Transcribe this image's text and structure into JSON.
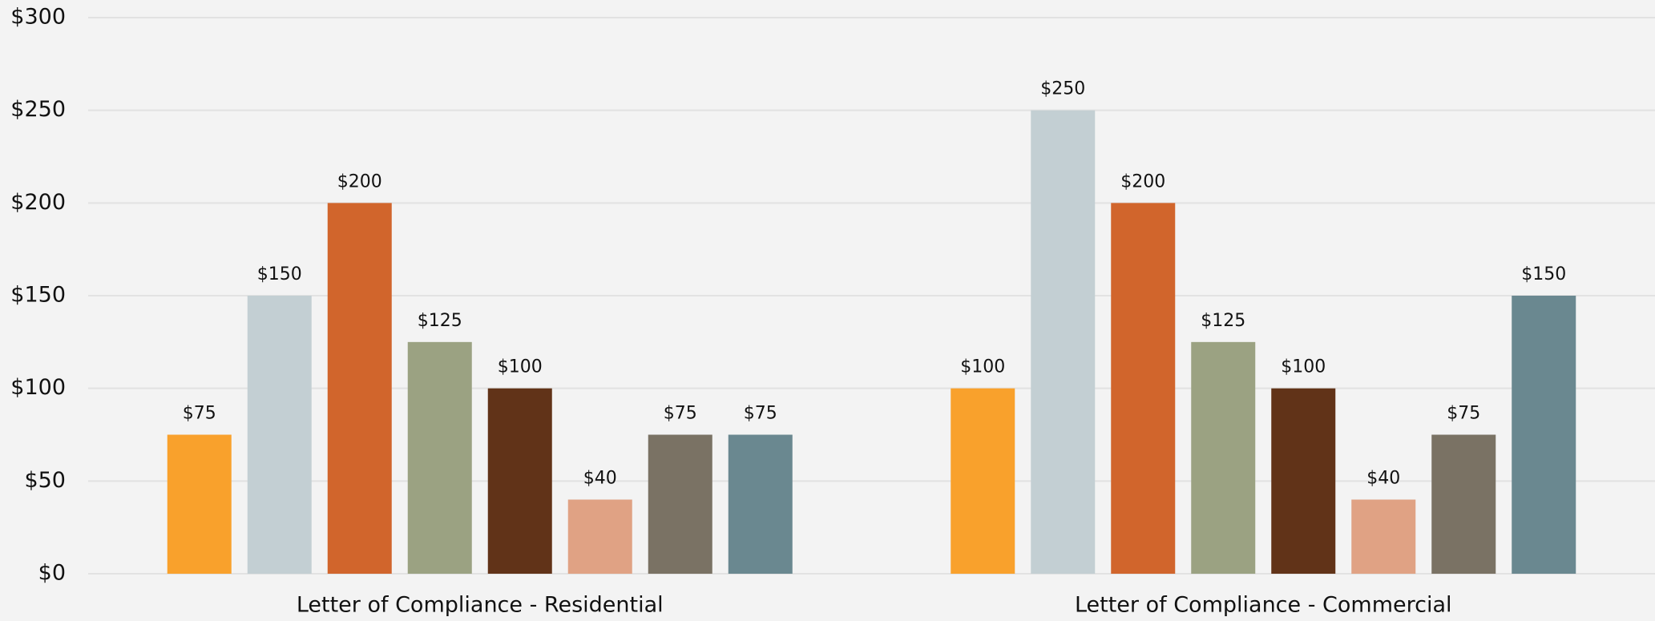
{
  "chart_data": {
    "type": "bar",
    "categories": [
      "Letter of Compliance - Residential",
      "Letter of Compliance - Commercial"
    ],
    "series": [
      {
        "color": "#f9a12c",
        "values": [
          75,
          100
        ],
        "value_labels": [
          "$75",
          "$100"
        ]
      },
      {
        "color": "#c3cfd3",
        "values": [
          150,
          250
        ],
        "value_labels": [
          "$150",
          "$250"
        ]
      },
      {
        "color": "#d1652c",
        "values": [
          200,
          200
        ],
        "value_labels": [
          "$200",
          "$200"
        ]
      },
      {
        "color": "#9ba282",
        "values": [
          125,
          125
        ],
        "value_labels": [
          "$125",
          "$125"
        ]
      },
      {
        "color": "#613318",
        "values": [
          100,
          100
        ],
        "value_labels": [
          "$100",
          "$100"
        ]
      },
      {
        "color": "#e0a284",
        "values": [
          40,
          40
        ],
        "value_labels": [
          "$40",
          "$40"
        ]
      },
      {
        "color": "#7a7264",
        "values": [
          75,
          75
        ],
        "value_labels": [
          "$75",
          "$75"
        ]
      },
      {
        "color": "#6a8890",
        "values": [
          75,
          150
        ],
        "value_labels": [
          "$75",
          "$150"
        ]
      }
    ],
    "ylim": [
      0,
      300
    ],
    "yticks": [
      {
        "value": 0,
        "label": "$0"
      },
      {
        "value": 50,
        "label": "$50"
      },
      {
        "value": 100,
        "label": "$100"
      },
      {
        "value": 150,
        "label": "$150"
      },
      {
        "value": 200,
        "label": "$200"
      },
      {
        "value": 250,
        "label": "$250"
      },
      {
        "value": 300,
        "label": "$300"
      }
    ],
    "grid": true
  }
}
